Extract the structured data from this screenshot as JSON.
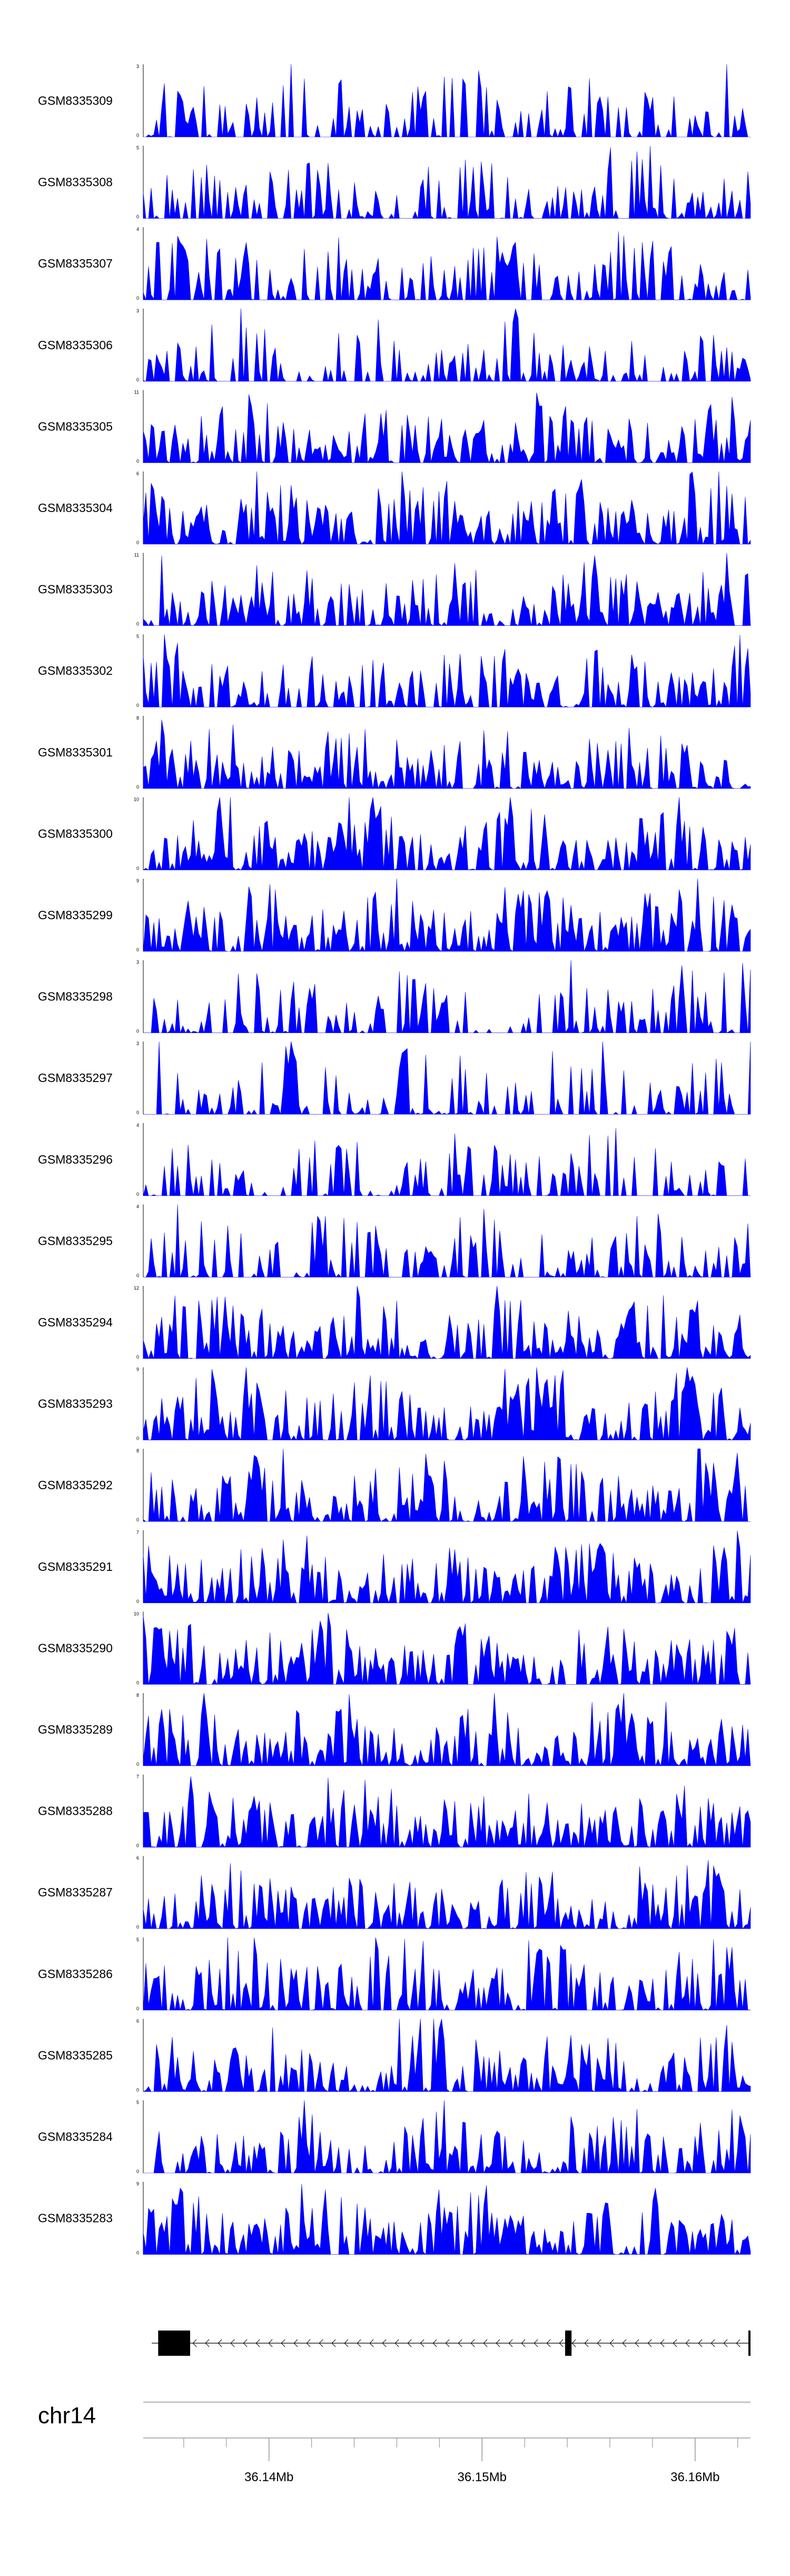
{
  "colors": {
    "signal": "#0000FF",
    "axis": "#000000",
    "track_line": "#999999",
    "gene": "#000000"
  },
  "chart_data": {
    "type": "area",
    "title": "",
    "xlabel": "",
    "ylabel": "",
    "x_range_mb": [
      36.1341,
      36.1626
    ],
    "tracks": [
      {
        "name": "GSM8335309",
        "ymax": 3,
        "seed": 309,
        "density": 0.25
      },
      {
        "name": "GSM8335308",
        "ymax": 5,
        "seed": 308,
        "density": 0.35
      },
      {
        "name": "GSM8335307",
        "ymax": 4,
        "seed": 307,
        "density": 0.35
      },
      {
        "name": "GSM8335306",
        "ymax": 3,
        "seed": 306,
        "density": 0.28
      },
      {
        "name": "GSM8335305",
        "ymax": 11,
        "seed": 305,
        "density": 0.6
      },
      {
        "name": "GSM8335304",
        "ymax": 6,
        "seed": 304,
        "density": 0.6
      },
      {
        "name": "GSM8335303",
        "ymax": 11,
        "seed": 303,
        "density": 0.5
      },
      {
        "name": "GSM8335302",
        "ymax": 5,
        "seed": 302,
        "density": 0.45
      },
      {
        "name": "GSM8335301",
        "ymax": 8,
        "seed": 301,
        "density": 0.55
      },
      {
        "name": "GSM8335300",
        "ymax": 10,
        "seed": 300,
        "density": 0.6
      },
      {
        "name": "GSM8335299",
        "ymax": 9,
        "seed": 299,
        "density": 0.6
      },
      {
        "name": "GSM8335298",
        "ymax": 3,
        "seed": 298,
        "density": 0.3
      },
      {
        "name": "GSM8335297",
        "ymax": 3,
        "seed": 297,
        "density": 0.25
      },
      {
        "name": "GSM8335296",
        "ymax": 4,
        "seed": 296,
        "density": 0.25
      },
      {
        "name": "GSM8335295",
        "ymax": 4,
        "seed": 295,
        "density": 0.35
      },
      {
        "name": "GSM8335294",
        "ymax": 12,
        "seed": 294,
        "density": 0.6
      },
      {
        "name": "GSM8335293",
        "ymax": 9,
        "seed": 293,
        "density": 0.6
      },
      {
        "name": "GSM8335292",
        "ymax": 8,
        "seed": 292,
        "density": 0.6
      },
      {
        "name": "GSM8335291",
        "ymax": 7,
        "seed": 291,
        "density": 0.55
      },
      {
        "name": "GSM8335290",
        "ymax": 10,
        "seed": 290,
        "density": 0.6
      },
      {
        "name": "GSM8335289",
        "ymax": 8,
        "seed": 289,
        "density": 0.6
      },
      {
        "name": "GSM8335288",
        "ymax": 7,
        "seed": 288,
        "density": 0.6
      },
      {
        "name": "GSM8335287",
        "ymax": 6,
        "seed": 287,
        "density": 0.6
      },
      {
        "name": "GSM8335286",
        "ymax": 5,
        "seed": 286,
        "density": 0.5
      },
      {
        "name": "GSM8335285",
        "ymax": 6,
        "seed": 285,
        "density": 0.5
      },
      {
        "name": "GSM8335284",
        "ymax": 5,
        "seed": 284,
        "density": 0.45
      },
      {
        "name": "GSM8335283",
        "ymax": 9,
        "seed": 283,
        "density": 0.6
      }
    ],
    "gene_track": {
      "strand": "-",
      "start_mb": 36.1345,
      "end_mb": 36.1626,
      "exons": [
        {
          "start_mb": 36.1348,
          "end_mb": 36.1363
        },
        {
          "start_mb": 36.1539,
          "end_mb": 36.1542
        },
        {
          "start_mb": 36.1625,
          "end_mb": 36.1626
        }
      ]
    },
    "chromosome": "chr14",
    "axis": {
      "labeled_ticks": [
        {
          "value_mb": 36.14,
          "label": "36.14Mb"
        },
        {
          "value_mb": 36.15,
          "label": "36.15Mb"
        },
        {
          "value_mb": 36.16,
          "label": "36.16Mb"
        }
      ],
      "minor_tick_step_mb": 0.002
    }
  }
}
